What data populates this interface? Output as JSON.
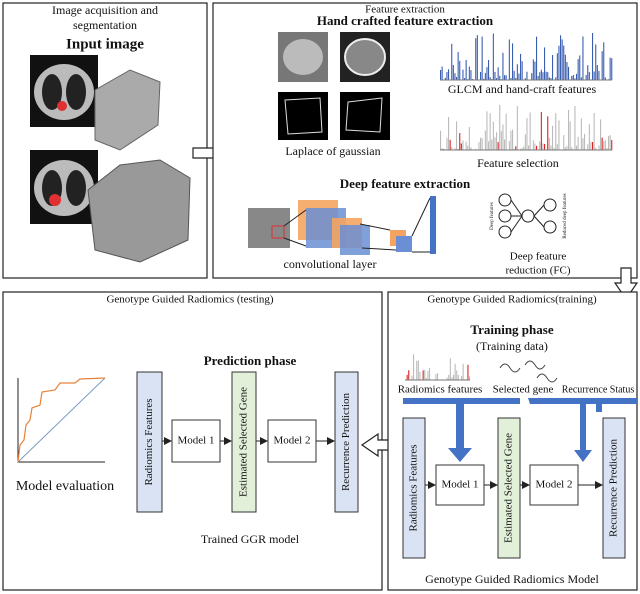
{
  "panels": {
    "acquisition": {
      "title_lines": [
        "Image acquisition and",
        "segmentation"
      ],
      "heading": "Input image"
    },
    "extraction": {
      "title": "Feature extraction",
      "hand_crafted": "Hand crafted feature extraction",
      "laplace": "Laplace of gaussian",
      "glcm": "GLCM and hand-craft features",
      "selection": "Feature selection",
      "deep": "Deep feature extraction",
      "conv": "convolutional layer",
      "reduction_lines": [
        "Deep feature",
        "reduction (FC)"
      ],
      "deep_features": "Deep features",
      "reduced_features": "Reduced deep features"
    },
    "testing": {
      "title": "Genotype Guided Radiomics (testing)",
      "phase": "Prediction phase",
      "boxes": [
        "Radiomics Features",
        "Model 1",
        "Estimated Selected Gene",
        "Model 2",
        "Recurrence Prediction"
      ],
      "evaluation": "Model evaluation",
      "footer": "Trained GGR model"
    },
    "training": {
      "title": "Genotype Guided Radiomics(training)",
      "phase": "Training phase",
      "data": "(Training data)",
      "inputs": [
        "Radiomics features",
        "Selected gene",
        "Recurrence Status"
      ],
      "boxes": [
        "Radiomics Features",
        "Model 1",
        "Estimated Selected Gene",
        "Model 2",
        "Recurrence Prediction"
      ],
      "footer": "Genotype Guided Radiomics Model"
    }
  }
}
